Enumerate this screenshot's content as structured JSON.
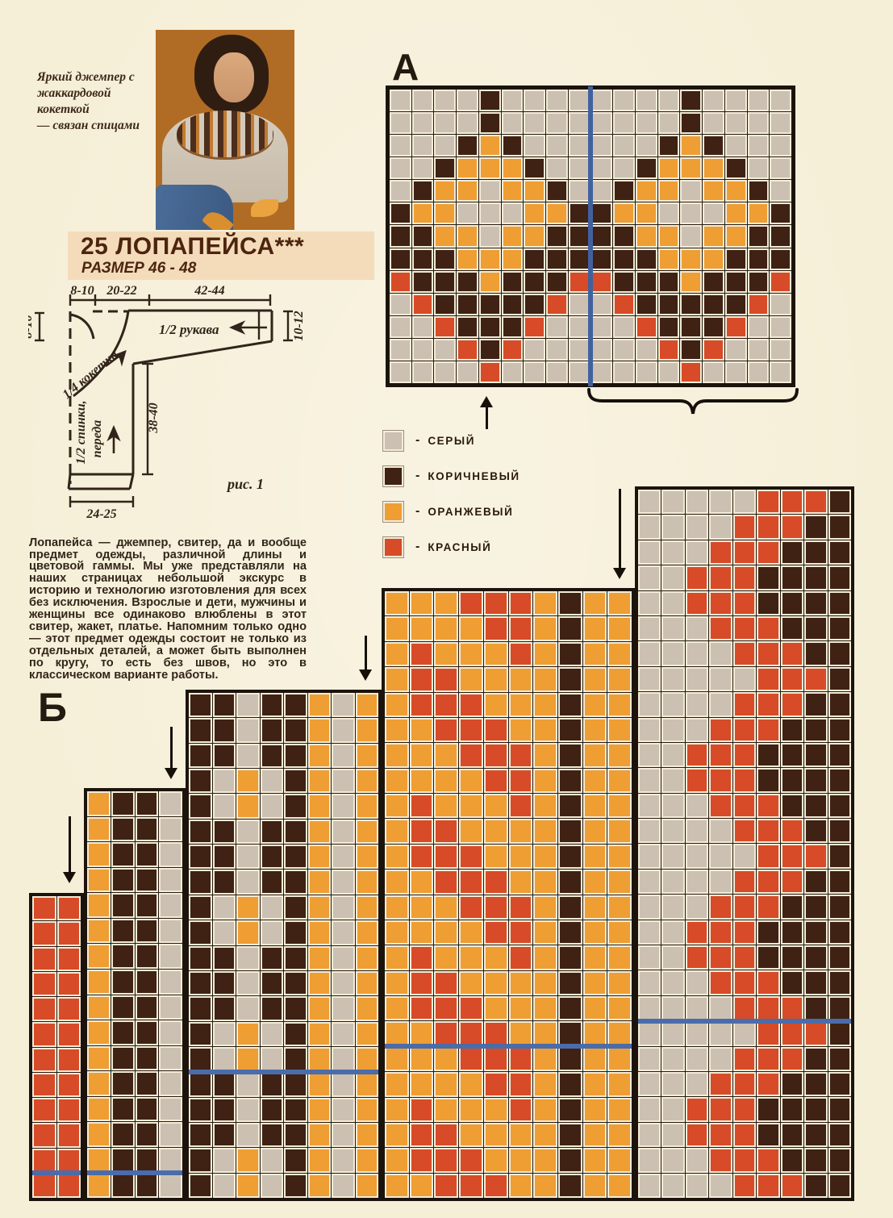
{
  "page": {
    "label_a": "А",
    "label_b": "Б"
  },
  "photo_caption": {
    "lines": [
      "Яркий джемпер с",
      "жаккардовой кокеткой",
      "— связан спицами"
    ]
  },
  "title": {
    "main": "25 ЛОПАПЕЙСА***",
    "size": "РАЗМЕР 46 - 48"
  },
  "schematic": {
    "caption": "рис. 1",
    "dim_top_left": "8-10",
    "dim_top_mid": "20-22",
    "dim_top_right": "42-44",
    "dim_left": "8-10",
    "dim_right": "10-12",
    "dim_body_height": "38-40",
    "dim_bottom": "24-25",
    "label_sleeve": "1/2 рукава",
    "label_yoke": "1/4 кокетки",
    "label_body_1": "1/2 спинки,",
    "label_body_2": "переда"
  },
  "paragraph": {
    "text": "Лопапейса — джемпер, свитер, да и вообще предмет одежды, различной длины и цветовой гаммы. Мы уже представляли на наших страницах небольшой экскурс в историю и технологию изготовления для всех без исключения. Взрослые и дети, мужчины и женщины все одинаково влюблены в этот свитер, жакет, платье. Напомним только одно — этот предмет одежды состоит не только из отдельных деталей, а может быть выполнен по кругу, то есть без швов, но это в классическом варианте работы."
  },
  "legend": {
    "dash": "-",
    "items": [
      {
        "key": "G",
        "label": "СЕРЫЙ"
      },
      {
        "key": "B",
        "label": "КОРИЧНЕВЫЙ"
      },
      {
        "key": "O",
        "label": "ОРАНЖЕВЫЙ"
      },
      {
        "key": "R",
        "label": "КРАСНЫЙ"
      }
    ]
  },
  "colors": {
    "grey": "#cbc0b1",
    "brown": "#3f2213",
    "orange": "#ee9e33",
    "red": "#d74b28",
    "blue": "#4a6cab",
    "page": "#f6efd8",
    "title": "#4c2410"
  },
  "chart_a": {
    "blue_vline_after_col": 9,
    "rows": [
      "GGGGBGGGGGGGGBGGGG",
      "GGGGBGGGGGGGGBGGGG",
      "GGGBOBGGGGGGBOBGGG",
      "GGBOOOBGGGGBOOOBGG",
      "GBOOGOOBGGBOOGOOBG",
      "BOOGGGOOBBOOGGGOOB",
      "BBOOGOOBBBBOOGOOBB",
      "BBBOOOBBBBBBOOOBBB",
      "RBBBOBBBRRBBBOBBBR",
      "GRBBBBBRGGRBBBBBRG",
      "GGRBBBRGGGGRBBBRGG",
      "GGGRBRGGGGGGRBRGGG",
      "GGGGRGGGGGGGGRGGGG"
    ]
  },
  "chart_b": {
    "steps": [
      {
        "blue_line_after_row": 11,
        "rows": [
          "RR",
          "RR",
          "RR",
          "RR",
          "RR",
          "RR",
          "RR",
          "RR",
          "RR",
          "RR",
          "RR",
          "RR"
        ]
      },
      {
        "blue_line_after_row": 15,
        "rows": [
          "OBBG",
          "OBBG",
          "OBBG",
          "OBBG",
          "OBBG",
          "OBBG",
          "OBBG",
          "OBBG",
          "OBBG",
          "OBBG",
          "OBBG",
          "OBBG",
          "OBBG",
          "OBBG",
          "OBBG",
          "OBBG"
        ]
      },
      {
        "blue_line_after_row": 15,
        "rows": [
          "BBGBBOGO",
          "BBGBBOGO",
          "BBGBBOGO",
          "BGOGBOGO",
          "BGOGBOGO",
          "BBGBBOGO",
          "BBGBBOGO",
          "BBGBBOGO",
          "BGOGBOGO",
          "BGOGBOGO",
          "BBGBBOGO",
          "BBGBBOGO",
          "BBGBBOGO",
          "BGOGBOGO",
          "BGOGBOGO",
          "BBGBBOGO",
          "BBGBBOGO",
          "BBGBBOGO",
          "BGOGBOGO",
          "BGOGBOGO"
        ]
      },
      {
        "blue_line_after_row": 18,
        "rows": [
          "OOORRROBOO",
          "OOOORROBOO",
          "OROOOROBOO",
          "ORROOOOBOO",
          "ORRROOOBOO",
          "OORRROOBOO",
          "OOORRROBOO",
          "OOOORROBOO",
          "OROOOROBOO",
          "ORROOOOBOO",
          "ORRROOOBOO",
          "OORRROOBOO",
          "OOORRROBOO",
          "OOOORROBOO",
          "OROOOROBOO",
          "ORROOOOBOO",
          "ORRROOOBOO",
          "OORRROOBOO",
          "OOORRROBOO",
          "OOOORROBOO",
          "OROOOROBOO",
          "ORROOOOBOO",
          "ORRROOOBOO",
          "OORRROOBOO"
        ]
      },
      {
        "blue_line_after_row": 21,
        "rows": [
          "GGGGGRRRB",
          "GGGGRRRBB",
          "GGGRRRBBB",
          "GGRRRBBBB",
          "GGRRRBBBB",
          "GGGRRRBBB",
          "GGGGRRRBB",
          "GGGGGRRRB",
          "GGGGRRRBB",
          "GGGRRRBBB",
          "GGRRRBBBB",
          "GGRRRBBBB",
          "GGGRRRBBB",
          "GGGGRRRBB",
          "GGGGGRRRB",
          "GGGGRRRBB",
          "GGGRRRBBB",
          "GGRRRBBBB",
          "GGRRRBBBB",
          "GGGRRRBBB",
          "GGGGRRRBB",
          "GGGGGRRRB",
          "GGGGRRRBB",
          "GGGRRRBBB",
          "GGRRRBBBB",
          "GGRRRBBBB",
          "GGGRRRBBB",
          "GGGGRRRBB"
        ]
      }
    ]
  }
}
